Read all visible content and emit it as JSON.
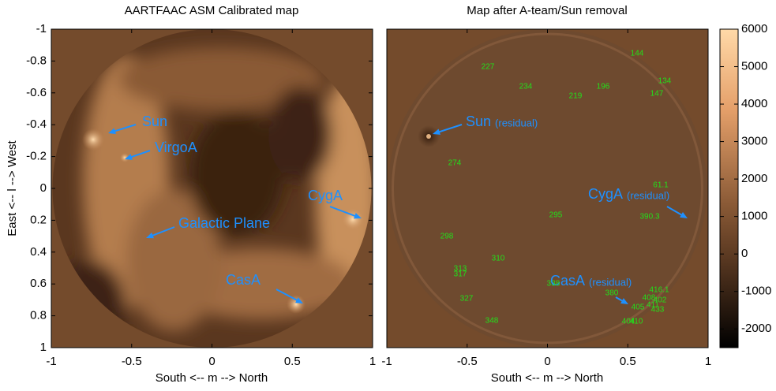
{
  "chart_data": [
    {
      "type": "image",
      "title": "AARTFAAC ASM Calibrated map",
      "xlabel": "South <-- m --> North",
      "ylabel": "East <-- l --> West",
      "xlim": [
        -1,
        1
      ],
      "xticks": [
        -1,
        -0.5,
        0,
        0.5,
        1
      ],
      "ylim": [
        -1,
        1
      ],
      "y_inverted": true,
      "yticks": [
        -1,
        -0.8,
        -0.6,
        -0.4,
        -0.2,
        0,
        0.2,
        0.4,
        0.6,
        0.8,
        1
      ],
      "annotations": [
        {
          "text": "Sun"
        },
        {
          "text": "VirgoA"
        },
        {
          "text": "Galactic Plane"
        },
        {
          "text": "CygA"
        },
        {
          "text": "CasA"
        }
      ]
    },
    {
      "type": "image",
      "title": "Map after A-team/Sun removal",
      "xlabel": "South <-- m --> North",
      "xlim": [
        -1,
        1
      ],
      "xticks": [
        -1,
        -0.5,
        0,
        0.5,
        1
      ],
      "ylim": [
        -1,
        1
      ],
      "y_inverted": true,
      "annotations": [
        {
          "text": "Sun",
          "note": "(residual)"
        },
        {
          "text": "CygA",
          "note": "(residual)"
        },
        {
          "text": "CasA",
          "note": "(residual)"
        }
      ],
      "source_labels": [
        "227",
        "144",
        "134",
        "234",
        "196",
        "147",
        "219",
        "274",
        "61.1",
        "390.3",
        "295",
        "298",
        "310",
        "313",
        "317",
        "338",
        "380",
        "416.1",
        "408",
        "402",
        "405",
        "411",
        "433",
        "327",
        "348",
        "404",
        "410"
      ]
    },
    {
      "type": "colorbar",
      "ylim": [
        -2500,
        6000
      ],
      "yticks": [
        -2000,
        -1000,
        0,
        1000,
        2000,
        3000,
        4000,
        5000,
        6000
      ]
    }
  ]
}
